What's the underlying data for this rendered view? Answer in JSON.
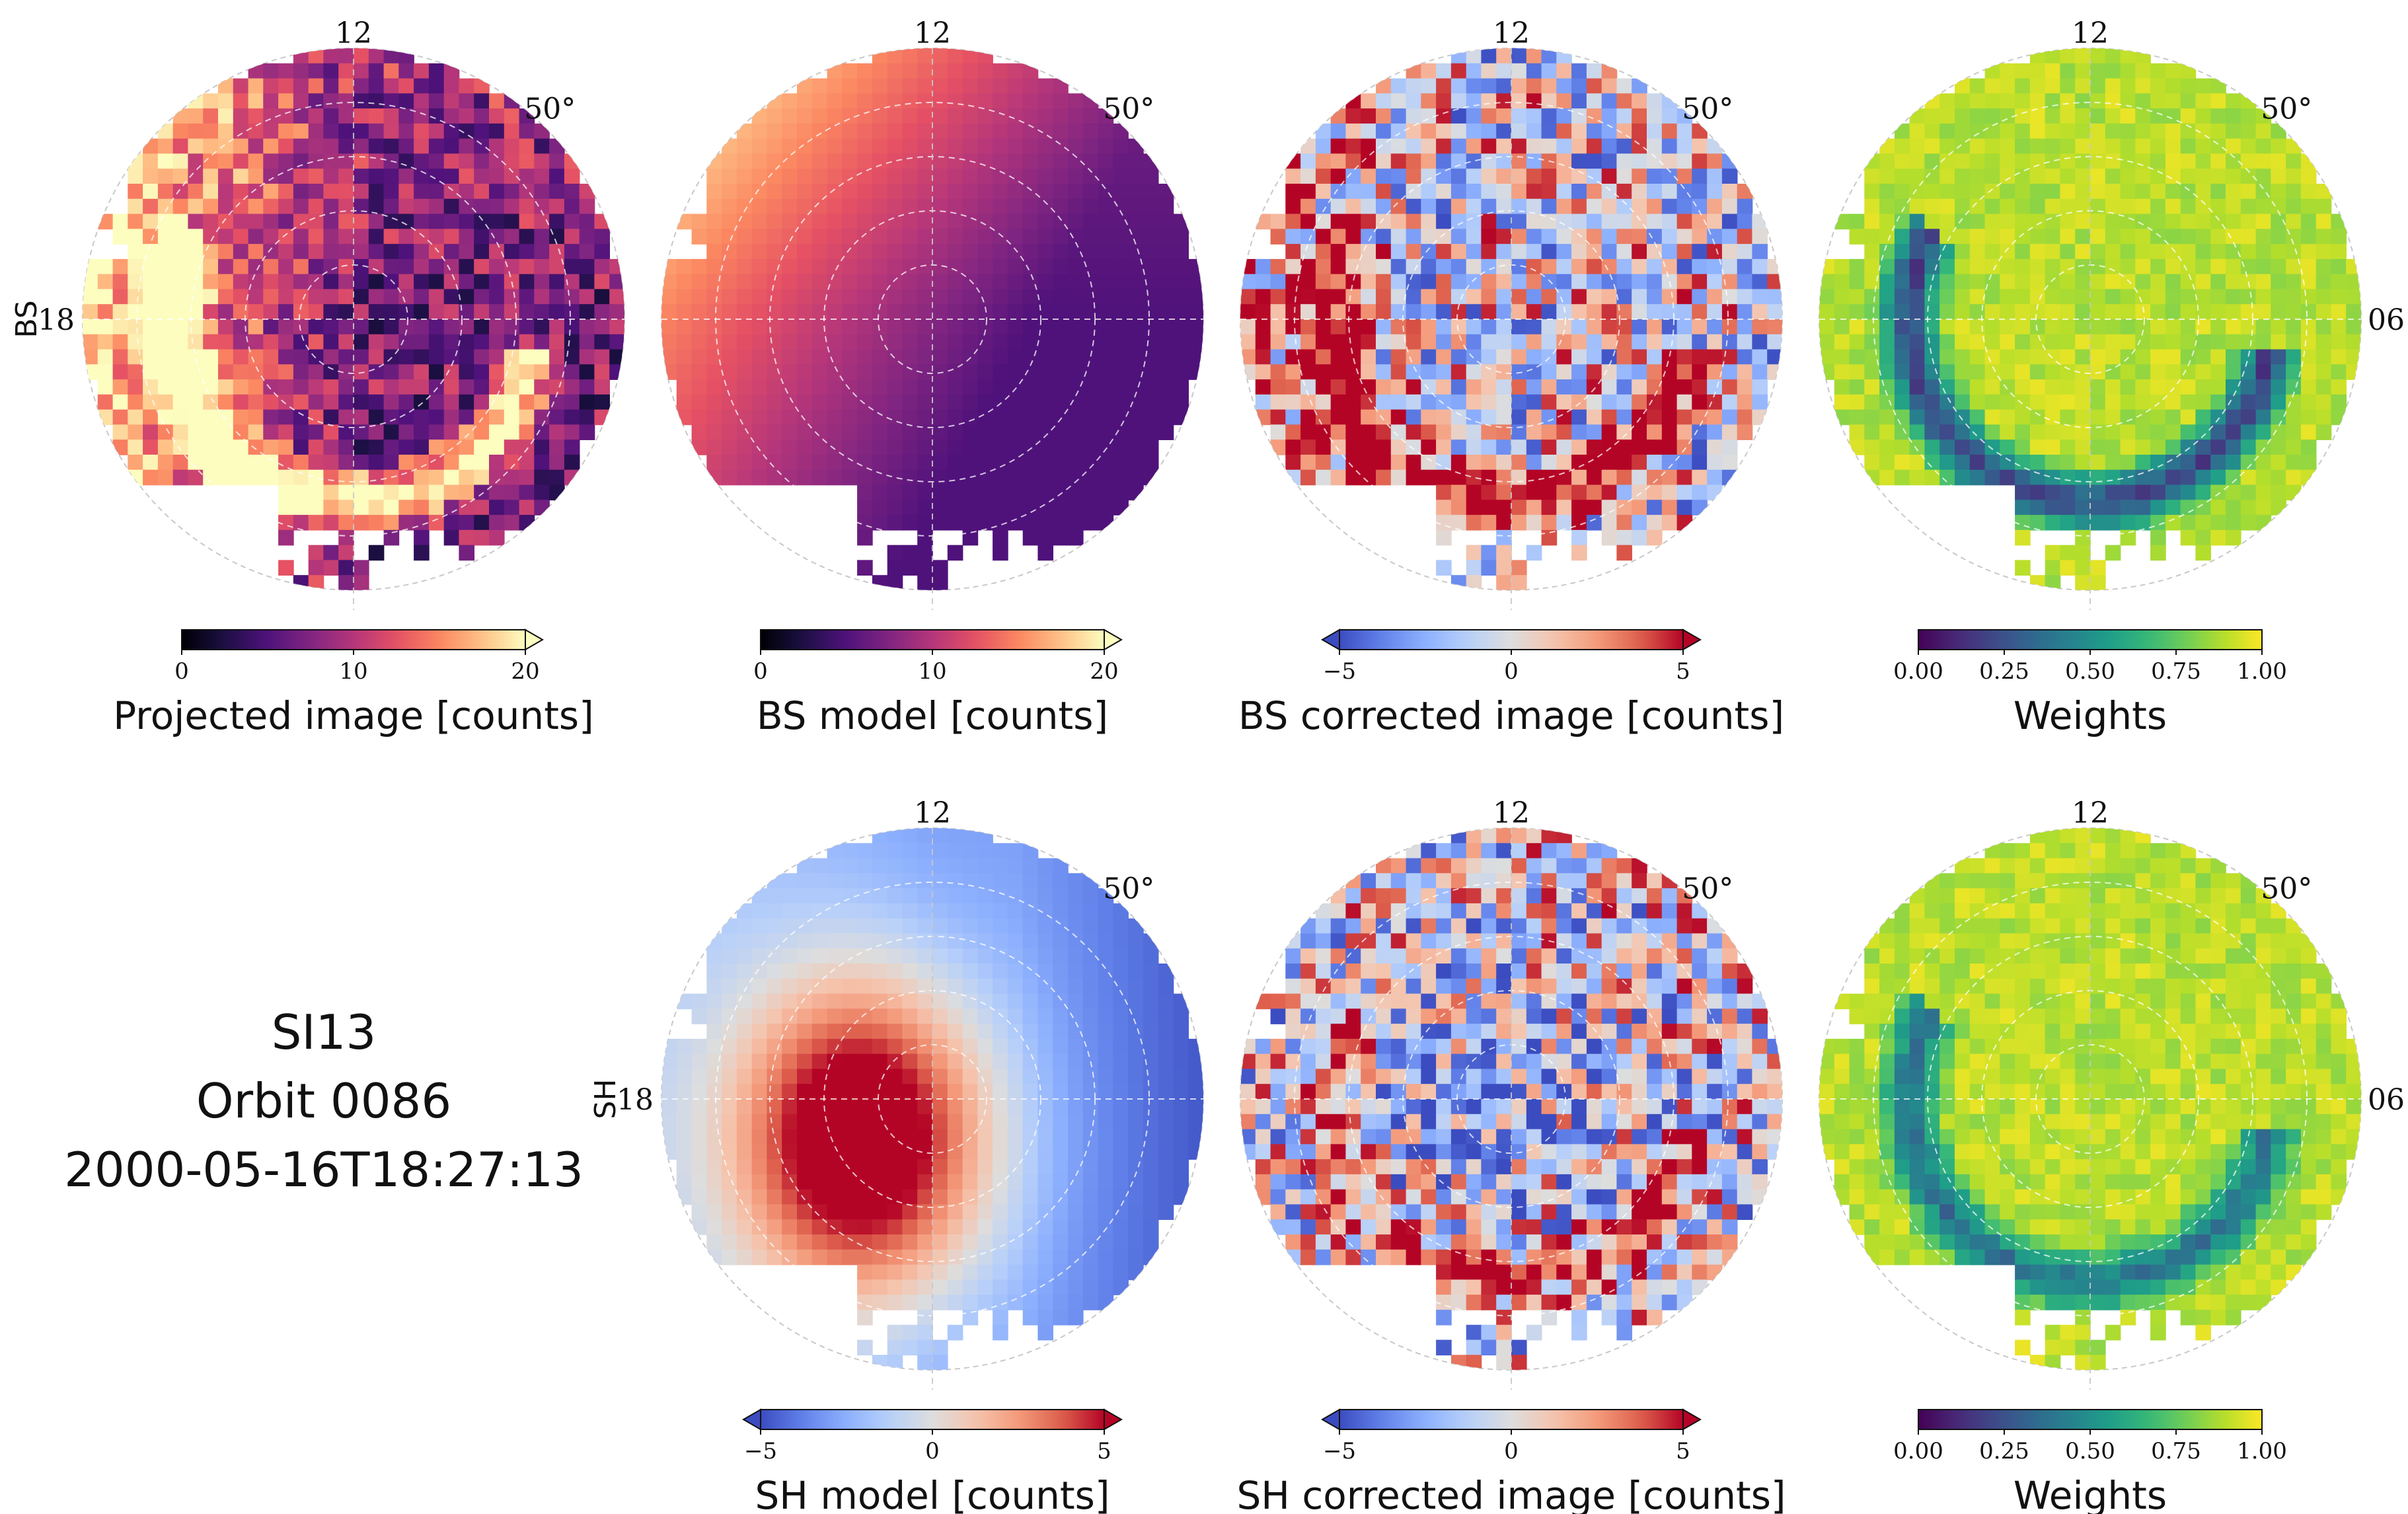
{
  "info": {
    "instrument": "SI13",
    "orbit": "Orbit 0086",
    "timestamp": "2000-05-16T18:27:13"
  },
  "chart_data": [
    {
      "type": "heatmap",
      "projection": "polar",
      "row": 0,
      "col": 0,
      "field": "projected",
      "colorbar": {
        "label": "Projected image [counts]",
        "cmap": "magma",
        "range": [
          0,
          20
        ],
        "ticks": [
          "0",
          "10",
          "20"
        ],
        "extend": "max"
      },
      "labels": {
        "top": "12",
        "left": "18",
        "right": "",
        "lat": "50°"
      },
      "row_label": "BS"
    },
    {
      "type": "heatmap",
      "projection": "polar",
      "row": 0,
      "col": 1,
      "field": "bs_model",
      "colorbar": {
        "label": "BS model [counts]",
        "cmap": "magma",
        "range": [
          0,
          20
        ],
        "ticks": [
          "0",
          "10",
          "20"
        ],
        "extend": "max"
      },
      "labels": {
        "top": "12",
        "left": "",
        "right": "",
        "lat": "50°"
      },
      "row_label": ""
    },
    {
      "type": "heatmap",
      "projection": "polar",
      "row": 0,
      "col": 2,
      "field": "bs_corrected",
      "colorbar": {
        "label": "BS corrected image [counts]",
        "cmap": "coolwarm",
        "range": [
          -5,
          5
        ],
        "ticks": [
          "−5",
          "0",
          "5"
        ],
        "extend": "both"
      },
      "labels": {
        "top": "12",
        "left": "",
        "right": "",
        "lat": "50°"
      },
      "row_label": ""
    },
    {
      "type": "heatmap",
      "projection": "polar",
      "row": 0,
      "col": 3,
      "field": "weights",
      "colorbar": {
        "label": "Weights",
        "cmap": "viridis",
        "range": [
          0,
          1
        ],
        "ticks": [
          "0.00",
          "0.25",
          "0.50",
          "0.75",
          "1.00"
        ],
        "extend": "neither"
      },
      "labels": {
        "top": "12",
        "left": "",
        "right": "06",
        "lat": "50°"
      },
      "row_label": ""
    },
    {
      "type": "heatmap",
      "projection": "polar",
      "row": 1,
      "col": 1,
      "field": "sh_model",
      "colorbar": {
        "label": "SH model [counts]",
        "cmap": "coolwarm",
        "range": [
          -5,
          5
        ],
        "ticks": [
          "−5",
          "0",
          "5"
        ],
        "extend": "both"
      },
      "labels": {
        "top": "12",
        "left": "18",
        "right": "",
        "lat": "50°"
      },
      "row_label": "SH"
    },
    {
      "type": "heatmap",
      "projection": "polar",
      "row": 1,
      "col": 2,
      "field": "sh_corrected",
      "colorbar": {
        "label": "SH corrected image [counts]",
        "cmap": "coolwarm",
        "range": [
          -5,
          5
        ],
        "ticks": [
          "−5",
          "0",
          "5"
        ],
        "extend": "both"
      },
      "labels": {
        "top": "12",
        "left": "",
        "right": "",
        "lat": "50°"
      },
      "row_label": ""
    },
    {
      "type": "heatmap",
      "projection": "polar",
      "row": 1,
      "col": 3,
      "field": "weights2",
      "colorbar": {
        "label": "Weights",
        "cmap": "viridis",
        "range": [
          0,
          1
        ],
        "ticks": [
          "0.00",
          "0.25",
          "0.50",
          "0.75",
          "1.00"
        ],
        "extend": "neither"
      },
      "labels": {
        "top": "12",
        "left": "",
        "right": "06",
        "lat": "50°"
      },
      "row_label": ""
    }
  ]
}
